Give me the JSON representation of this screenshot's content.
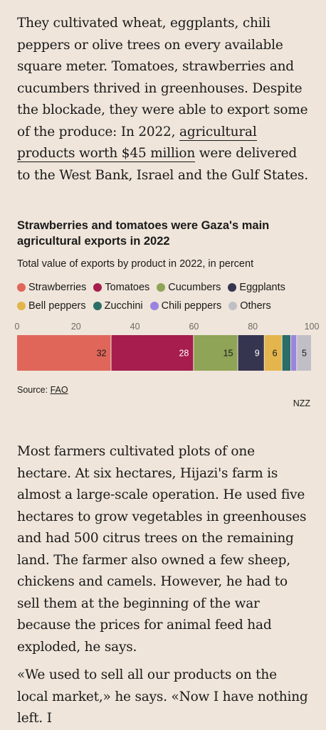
{
  "article": {
    "para1_before_link": "They cultivated wheat, eggplants, chili peppers or olive trees on every available square meter. Tomatoes, strawberries and cucumbers thrived in greenhouses. Despite the blockade, they were able to export some of the produce: In 2022, ",
    "para1_link": "agricultural products worth $45 million",
    "para1_after_link": " were delivered to the West Bank, Israel and the Gulf States.",
    "para2": "Most farmers cultivated plots of one hectare. At six hectares, Hijazi's farm is almost a large-scale operation. He used five hectares to grow vegetables in greenhouses and had 500 citrus trees on the remaining land. The farmer also owned a few sheep, chickens and camels. However, he had to sell them at the beginning of the war because the prices for animal feed had exploded, he says.",
    "para3": "«We used to sell all our products on the local market,» he says. «Now I have nothing left. I"
  },
  "chart_data": {
    "type": "bar",
    "orientation": "horizontal-stacked",
    "title": "Strawberries and tomatoes were Gaza's main agricultural exports in 2022",
    "subtitle": "Total value of exports by product in 2022, in percent",
    "xlim": [
      0,
      100
    ],
    "ticks": [
      "0",
      "20",
      "40",
      "60",
      "80",
      "100"
    ],
    "tick_values": [
      0,
      20,
      40,
      60,
      80,
      100
    ],
    "legend_placement": "top",
    "series": [
      {
        "name": "Strawberries",
        "value": 32,
        "label": "32",
        "color": "#e0665a",
        "label_color": "#1a1a1a"
      },
      {
        "name": "Tomatoes",
        "value": 28,
        "label": "28",
        "color": "#a71d4d",
        "label_color": "#ffffff"
      },
      {
        "name": "Cucumbers",
        "value": 15,
        "label": "15",
        "color": "#8fa456",
        "label_color": "#1a1a1a"
      },
      {
        "name": "Eggplants",
        "value": 9,
        "label": "9",
        "color": "#363550",
        "label_color": "#ffffff"
      },
      {
        "name": "Bell peppers",
        "value": 6,
        "label": "6",
        "color": "#e3b54c",
        "label_color": "#1a1a1a"
      },
      {
        "name": "Zucchini",
        "value": 3,
        "label": "",
        "color": "#2b6d67",
        "label_color": "#ffffff"
      },
      {
        "name": "Chili peppers",
        "value": 2,
        "label": "",
        "color": "#9a84e0",
        "label_color": "#1a1a1a"
      },
      {
        "name": "Others",
        "value": 5,
        "label": "5",
        "color": "#c0bfc6",
        "label_color": "#1a1a1a"
      }
    ]
  },
  "source": {
    "prefix": "Source: ",
    "link": "FAO"
  },
  "brand": "NZZ"
}
